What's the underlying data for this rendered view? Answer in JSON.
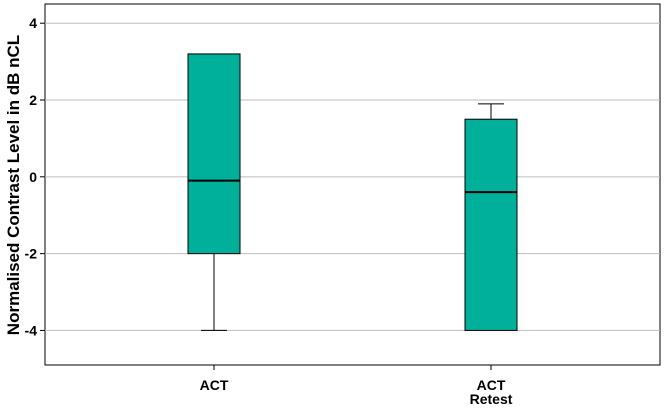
{
  "chart_data": {
    "type": "boxplot",
    "ylabel": "Normalised Contrast Level in dB nCL",
    "xlabel": "",
    "ylim": [
      -4.9,
      4.5
    ],
    "yticks": [
      4,
      2,
      0,
      -2,
      -4
    ],
    "ytick_labels": [
      "4",
      "2",
      "0",
      "-2",
      "-4"
    ],
    "grid": "horizontal",
    "box_color": "#00b09b",
    "categories": [
      {
        "label_lines": [
          "ACT"
        ],
        "whisker_low": -4.0,
        "q1": -2.0,
        "median": -0.1,
        "q3": 3.2,
        "whisker_high": 3.2
      },
      {
        "label_lines": [
          "ACT",
          "Retest"
        ],
        "whisker_low": -4.0,
        "q1": -4.0,
        "median": -0.4,
        "q3": 1.5,
        "whisker_high": 1.9
      }
    ]
  }
}
